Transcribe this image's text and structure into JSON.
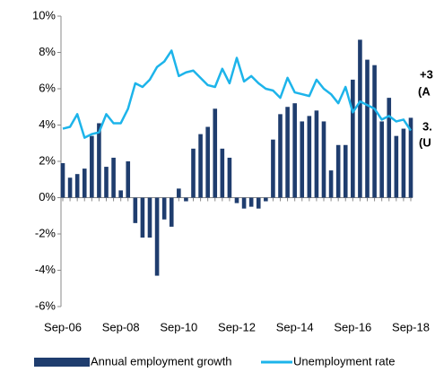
{
  "chart_data": {
    "type": "bar-line",
    "categories": [
      "Sep-06",
      null,
      null,
      null,
      null,
      null,
      null,
      null,
      "Sep-08",
      null,
      null,
      null,
      null,
      null,
      null,
      null,
      "Sep-10",
      null,
      null,
      null,
      null,
      null,
      null,
      null,
      "Sep-12",
      null,
      null,
      null,
      null,
      null,
      null,
      null,
      "Sep-14",
      null,
      null,
      null,
      null,
      null,
      null,
      null,
      "Sep-16",
      null,
      null,
      null,
      null,
      null,
      null,
      null,
      "Sep-18"
    ],
    "series": [
      {
        "name": "Annual employment growth",
        "type": "bar",
        "color": "#1f3d6e",
        "values": [
          1.9,
          1.1,
          1.3,
          1.6,
          3.4,
          4.1,
          1.7,
          2.2,
          0.4,
          2.0,
          -1.4,
          -2.2,
          -2.2,
          -4.3,
          -1.2,
          -1.6,
          0.5,
          -0.2,
          2.7,
          3.5,
          3.9,
          4.9,
          2.7,
          2.2,
          -0.3,
          -0.6,
          -0.5,
          -0.6,
          -0.2,
          3.2,
          4.6,
          5.0,
          5.2,
          4.2,
          4.5,
          4.8,
          4.2,
          1.5,
          2.9,
          2.9,
          6.5,
          8.7,
          7.6,
          7.3,
          4.2,
          5.5,
          3.4,
          3.8,
          4.4
        ]
      },
      {
        "name": "Unemployment rate",
        "type": "line",
        "color": "#1db4ea",
        "values": [
          3.8,
          3.9,
          4.6,
          3.3,
          3.5,
          3.6,
          4.6,
          4.1,
          4.1,
          4.9,
          6.3,
          6.1,
          6.5,
          7.2,
          7.5,
          8.1,
          6.7,
          6.9,
          7.0,
          6.6,
          6.2,
          6.1,
          7.1,
          6.3,
          7.7,
          6.4,
          6.7,
          6.3,
          6.0,
          5.9,
          5.5,
          6.6,
          5.8,
          5.7,
          5.6,
          6.5,
          6.0,
          5.7,
          5.2,
          6.1,
          4.7,
          5.3,
          5.1,
          4.9,
          4.3,
          4.5,
          4.2,
          4.3,
          3.7
        ]
      }
    ],
    "ylim": [
      -6,
      10
    ],
    "yticks": [
      {
        "value": -6,
        "label": "-6%"
      },
      {
        "value": -4,
        "label": "-4%"
      },
      {
        "value": -2,
        "label": "-2%"
      },
      {
        "value": 0,
        "label": "0%"
      },
      {
        "value": 2,
        "label": "2%"
      },
      {
        "value": 4,
        "label": "4%"
      },
      {
        "value": 6,
        "label": "6%"
      },
      {
        "value": 8,
        "label": "8%"
      },
      {
        "value": 10,
        "label": "10%"
      }
    ],
    "grid": false,
    "legend": "bottom",
    "annotations": [
      {
        "text": "+3",
        "color": "#1f3d6e"
      },
      {
        "text": "(A",
        "color": "#1f3d6e"
      },
      {
        "text": "3.",
        "color": "#1db4ea"
      },
      {
        "text": "(U",
        "color": "#1db4ea"
      }
    ]
  }
}
